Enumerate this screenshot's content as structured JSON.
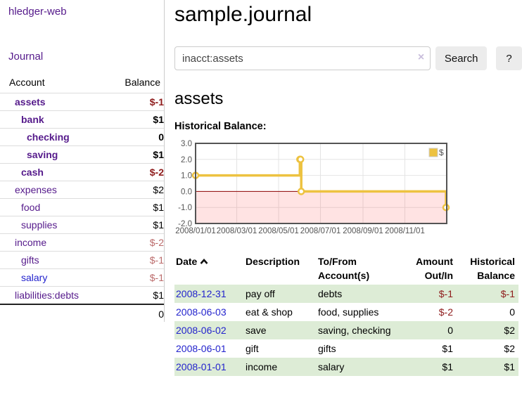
{
  "app": {
    "brand": "hledger-web"
  },
  "colors": {
    "link_purple": "#551a8b",
    "link_blue": "#2323cd",
    "negative_strong": "#8e1b1b",
    "negative_soft": "#bb6b6b",
    "row_stripe_green": "#ddecd6",
    "chart_series_gold": "#EDC240",
    "chart_negative_zone_line": "#8b0000",
    "button_gray": "#ececec"
  },
  "sidebar": {
    "journal_label": "Journal",
    "accounts_table": {
      "header_account": "Account",
      "header_balance": "Balance",
      "rows": [
        {
          "account": "assets",
          "depth": 1,
          "emph": true,
          "balance": "$-1"
        },
        {
          "account": "bank",
          "depth": 2,
          "emph": true,
          "balance": "$1"
        },
        {
          "account": "checking",
          "depth": 3,
          "emph": true,
          "balance": "0"
        },
        {
          "account": "saving",
          "depth": 3,
          "emph": true,
          "balance": "$1"
        },
        {
          "account": "cash",
          "depth": 2,
          "emph": true,
          "balance": "$-2"
        },
        {
          "account": "expenses",
          "depth": 1,
          "emph": false,
          "balance": "$2"
        },
        {
          "account": "food",
          "depth": 2,
          "emph": false,
          "balance": "$1"
        },
        {
          "account": "supplies",
          "depth": 2,
          "emph": false,
          "balance": "$1"
        },
        {
          "account": "income",
          "depth": 1,
          "emph": false,
          "balance": "$-2"
        },
        {
          "account": "gifts",
          "depth": 2,
          "emph": false,
          "balance": "$-1"
        },
        {
          "account": "salary",
          "depth": 2,
          "emph": false,
          "balance": "$-1",
          "link_style": "blue"
        },
        {
          "account": "liabilities:debts",
          "depth": 1,
          "emph": false,
          "balance": "$1"
        }
      ],
      "total": "0"
    }
  },
  "main": {
    "title": "sample.journal",
    "search": {
      "value": "inacct:assets",
      "clear_icon": "×",
      "button_label": "Search",
      "help_label": "?"
    },
    "account_heading": "assets",
    "chart_label": "Historical Balance:",
    "register": {
      "headers": {
        "date": "Date",
        "sort_icon": "chevron-up",
        "description": "Description",
        "accounts": "To/From Account(s)",
        "amount": "Amount Out/In",
        "balance": "Historical Balance"
      },
      "rows": [
        {
          "date": "2008-12-31",
          "description": "pay off",
          "accounts": "debts",
          "amount": "$-1",
          "balance": "$-1"
        },
        {
          "date": "2008-06-03",
          "description": "eat & shop",
          "accounts": "food, supplies",
          "amount": "$-2",
          "balance": "0"
        },
        {
          "date": "2008-06-02",
          "description": "save",
          "accounts": "saving, checking",
          "amount": "0",
          "balance": "$2"
        },
        {
          "date": "2008-06-01",
          "description": "gift",
          "accounts": "gifts",
          "amount": "$1",
          "balance": "$2"
        },
        {
          "date": "2008-01-01",
          "description": "income",
          "accounts": "salary",
          "amount": "$1",
          "balance": "$1"
        }
      ]
    }
  },
  "chart_data": {
    "type": "line",
    "title": "Historical Balance:",
    "step": true,
    "series": [
      {
        "name": "$",
        "color": "#EDC240",
        "points": [
          [
            "2008-01-01",
            1
          ],
          [
            "2008-06-01",
            2
          ],
          [
            "2008-06-02",
            2
          ],
          [
            "2008-06-03",
            0
          ],
          [
            "2008-12-31",
            -1
          ]
        ]
      }
    ],
    "x_ticks": [
      "2008/01/01",
      "2008/03/01",
      "2008/05/01",
      "2008/07/01",
      "2008/09/01",
      "2008/11/01"
    ],
    "y_ticks": [
      3.0,
      2.0,
      1.0,
      0.0,
      -1.0,
      -2.0
    ],
    "xlim": [
      "2008-01-01",
      "2009-01-01"
    ],
    "ylim": [
      -2,
      3
    ],
    "grid": true,
    "negative_region_shaded": true,
    "legend": {
      "label": "$",
      "position": "top-right"
    }
  }
}
